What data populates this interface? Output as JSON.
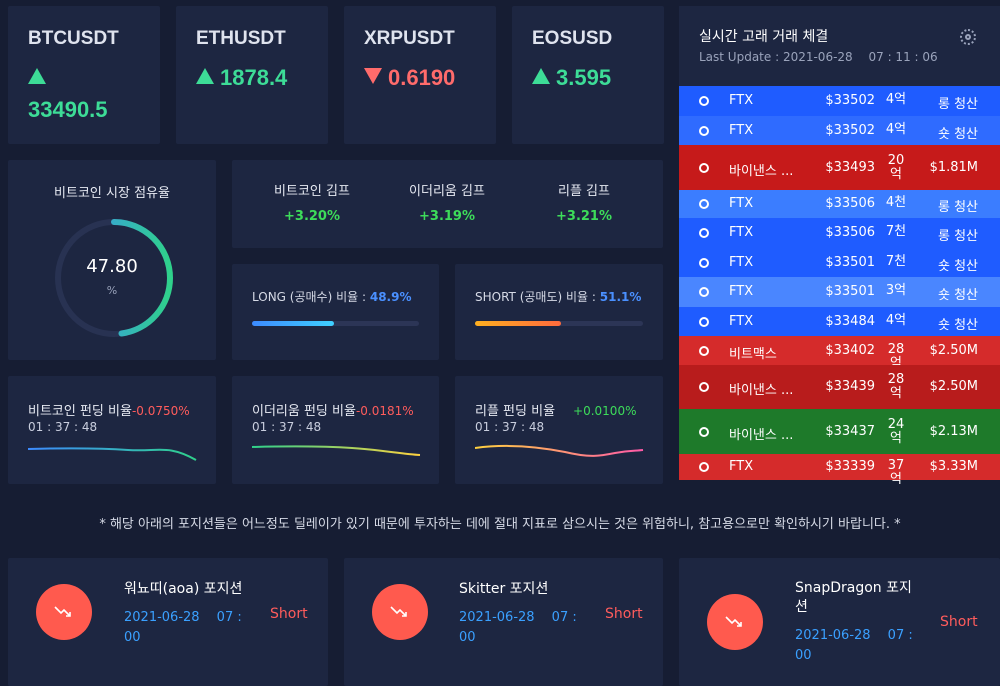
{
  "tickers": [
    {
      "symbol": "BTCUSDT",
      "value": "33490.5",
      "dir": "up"
    },
    {
      "symbol": "ETHUSDT",
      "value": "1878.4",
      "dir": "up"
    },
    {
      "symbol": "XRPUSDT",
      "value": "0.6190",
      "dir": "down"
    },
    {
      "symbol": "EOSUSD",
      "value": "3.595",
      "dir": "up"
    }
  ],
  "dominance": {
    "title": "비트코인 시장 점유율",
    "value": "47.80",
    "unit": "%",
    "percent": 47.8
  },
  "kimp": [
    {
      "label": "비트코인 김프",
      "value": "+3.20%"
    },
    {
      "label": "이더리움 김프",
      "value": "+3.19%"
    },
    {
      "label": "리플 김프",
      "value": "+3.21%"
    }
  ],
  "long_short": {
    "long": {
      "label": "LONG (공매수) 비율 : ",
      "value": "48.9%",
      "ratio": 0.489
    },
    "short": {
      "label": "SHORT (공매도) 비율 : ",
      "value": "51.1%",
      "ratio": 0.511
    }
  },
  "funding": [
    {
      "label": "비트코인 펀딩 비율",
      "value": "-0.0750%",
      "time": "01 : 37 : 48",
      "dir": "down"
    },
    {
      "label": "이더리움 펀딩 비율",
      "value": "-0.0181%",
      "time": "01 : 37 : 48",
      "dir": "down"
    },
    {
      "label": "리플 펀딩 비율",
      "value": "+0.0100%",
      "time": "01 : 37 : 48",
      "dir": "up"
    }
  ],
  "whale": {
    "title": "실시간 고래 거래 체결",
    "last_update": "Last Update : 2021-06-28　 07 : 11 : 06",
    "trades": [
      {
        "exchange": "FTX",
        "price": "$33502",
        "qty": "4억",
        "kind": "롱 청산",
        "color": "#1f5cff"
      },
      {
        "exchange": "FTX",
        "price": "$33502",
        "qty": "4억",
        "kind": "숏 청산",
        "color": "#2f6bff"
      },
      {
        "exchange": "바이낸스 ...",
        "price": "$33493",
        "qty": "20\n억",
        "kind": "$1.81M",
        "color": "#c61a1a"
      },
      {
        "exchange": "FTX",
        "price": "$33506",
        "qty": "4천",
        "kind": "롱 청산",
        "color": "#3b7dff"
      },
      {
        "exchange": "FTX",
        "price": "$33506",
        "qty": "7천",
        "kind": "롱 청산",
        "color": "#1f5cff"
      },
      {
        "exchange": "FTX",
        "price": "$33501",
        "qty": "7천",
        "kind": "숏 청산",
        "color": "#1f5cff"
      },
      {
        "exchange": "FTX",
        "price": "$33501",
        "qty": "3억",
        "kind": "숏 청산",
        "color": "#4a86ff"
      },
      {
        "exchange": "FTX",
        "price": "$33484",
        "qty": "4억",
        "kind": "숏 청산",
        "color": "#1f5cff"
      },
      {
        "exchange": "비트맥스",
        "price": "$33402",
        "qty": "28억",
        "kind": "$2.50M",
        "color": "#d52b2b"
      },
      {
        "exchange": "바이낸스 ...",
        "price": "$33439",
        "qty": "28\n억",
        "kind": "$2.50M",
        "color": "#b81c1c"
      },
      {
        "exchange": "바이낸스 ...",
        "price": "$33437",
        "qty": "24\n억",
        "kind": "$2.13M",
        "color": "#1e7a2a"
      },
      {
        "exchange": "FTX",
        "price": "$33339",
        "qty": "37억",
        "kind": "$3.33M",
        "color": "#d52b2b"
      }
    ]
  },
  "notice": "* 해당 아래의 포지션들은 어느정도 딜레이가 있기 때문에 투자하는 데에 절대 지표로 삼으시는 것은 위험하니, 참고용으로만 확인하시기 바랍니다. *",
  "positions": [
    {
      "name": "워뇨띠(aoa) 포지션",
      "date": "2021-06-28　 07 :\n00",
      "type": "Short"
    },
    {
      "name": "Skitter 포지션",
      "date": "2021-06-28　 07 :\n00",
      "type": "Short"
    },
    {
      "name": "SnapDragon 포지\n션",
      "date": "2021-06-28　 07 :\n00",
      "type": "Short"
    }
  ],
  "colors": {
    "background": "#161d33",
    "card": "#1d2641",
    "up": "#3ddc97",
    "down": "#ff6b6b",
    "accent_blue": "#4a90ff"
  },
  "icons": {
    "settings": "gear-icon",
    "position": "trending-down-icon"
  }
}
